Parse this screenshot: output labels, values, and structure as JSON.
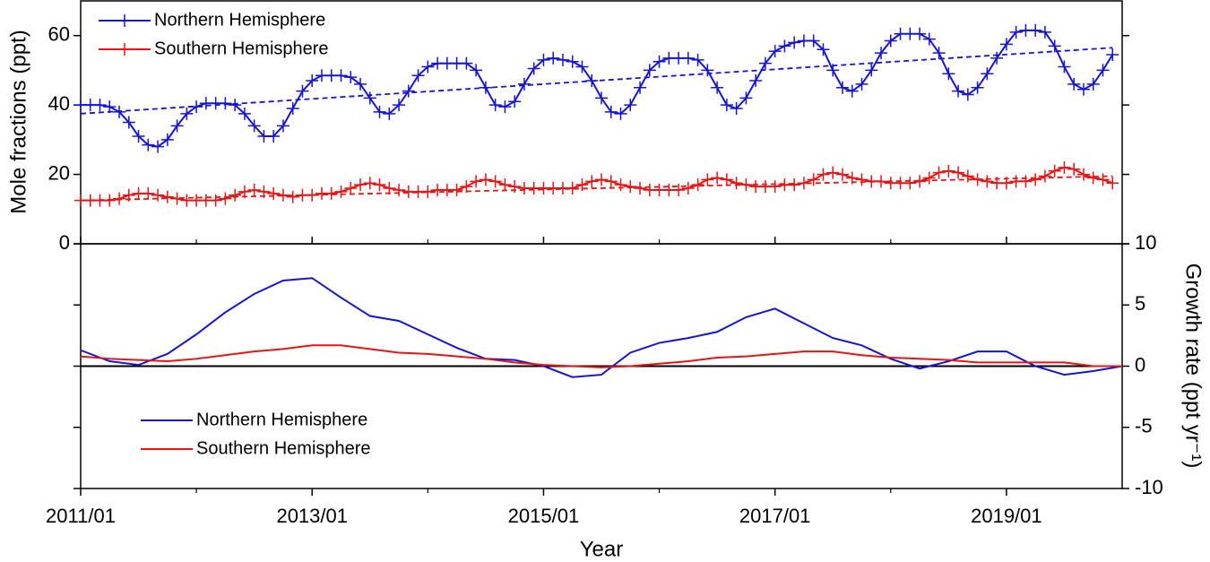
{
  "chart_data": [
    {
      "type": "line",
      "y_label": "Mole fractions (ppt)",
      "ylim": [
        0,
        70
      ],
      "yticks": [
        0,
        20,
        40,
        60
      ],
      "legend": "upper left",
      "marker": "+",
      "x": [
        "2011/01",
        "2011/02",
        "2011/03",
        "2011/04",
        "2011/05",
        "2011/06",
        "2011/07",
        "2011/08",
        "2011/09",
        "2011/10",
        "2011/11",
        "2011/12",
        "2012/01",
        "2012/02",
        "2012/03",
        "2012/04",
        "2012/05",
        "2012/06",
        "2012/07",
        "2012/08",
        "2012/09",
        "2012/10",
        "2012/11",
        "2012/12",
        "2013/01",
        "2013/02",
        "2013/03",
        "2013/04",
        "2013/05",
        "2013/06",
        "2013/07",
        "2013/08",
        "2013/09",
        "2013/10",
        "2013/11",
        "2013/12",
        "2014/01",
        "2014/02",
        "2014/03",
        "2014/04",
        "2014/05",
        "2014/06",
        "2014/07",
        "2014/08",
        "2014/09",
        "2014/10",
        "2014/11",
        "2014/12",
        "2015/01",
        "2015/02",
        "2015/03",
        "2015/04",
        "2015/05",
        "2015/06",
        "2015/07",
        "2015/08",
        "2015/09",
        "2015/10",
        "2015/11",
        "2015/12",
        "2016/01",
        "2016/02",
        "2016/03",
        "2016/04",
        "2016/05",
        "2016/06",
        "2016/07",
        "2016/08",
        "2016/09",
        "2016/10",
        "2016/11",
        "2016/12",
        "2017/01",
        "2017/02",
        "2017/03",
        "2017/04",
        "2017/05",
        "2017/06",
        "2017/07",
        "2017/08",
        "2017/09",
        "2017/10",
        "2017/11",
        "2017/12",
        "2018/01",
        "2018/02",
        "2018/03",
        "2018/04",
        "2018/05",
        "2018/06",
        "2018/07",
        "2018/08",
        "2018/09",
        "2018/10",
        "2018/11",
        "2018/12",
        "2019/01",
        "2019/02",
        "2019/03",
        "2019/04",
        "2019/05",
        "2019/06",
        "2019/07",
        "2019/08",
        "2019/09",
        "2019/10",
        "2019/11",
        "2019/12"
      ],
      "series": [
        {
          "name": "Northern Hemisphere",
          "color": "#1414d2",
          "values": [
            40,
            40,
            40,
            39.5,
            38,
            35,
            31,
            28.5,
            28,
            30,
            34,
            37.5,
            39.5,
            40.5,
            40.5,
            40.5,
            40,
            37.5,
            34,
            31,
            31,
            34,
            39,
            44,
            47,
            48.5,
            48.5,
            48.5,
            48,
            46,
            42,
            38,
            37.5,
            40,
            44,
            48.5,
            51,
            52,
            52,
            52,
            52,
            50,
            45,
            40,
            39.5,
            41,
            46,
            50.5,
            53,
            53.5,
            53,
            52.5,
            51,
            47,
            42,
            38,
            37.5,
            40,
            45,
            50,
            52.5,
            53.5,
            53.5,
            53.5,
            53,
            50,
            45,
            40,
            39,
            42,
            47,
            52,
            55.5,
            57,
            58,
            58.5,
            58.5,
            56,
            50,
            45,
            44,
            46,
            50,
            55,
            58.5,
            60.5,
            60.5,
            60.5,
            59,
            55,
            49,
            44,
            43,
            45,
            49,
            53.5,
            57.5,
            61,
            61.5,
            61.5,
            61,
            57,
            51,
            46,
            44.5,
            46,
            50,
            54.5
          ]
        },
        {
          "name": "Southern Hemisphere",
          "color": "#e61414",
          "values": [
            12.5,
            12.5,
            12.5,
            12.5,
            13,
            14,
            14.5,
            14.5,
            14,
            13.5,
            13,
            12.5,
            12.5,
            12.5,
            12.5,
            13,
            14,
            15,
            15.5,
            15,
            14.5,
            14,
            13.5,
            14,
            14,
            14.5,
            14.5,
            15,
            16,
            17,
            17.5,
            17,
            16,
            15.5,
            15,
            15,
            15,
            15.5,
            15.5,
            15.5,
            16.5,
            18,
            18.5,
            18,
            17,
            16.5,
            16,
            16,
            16,
            16,
            16,
            16,
            17,
            18,
            18.5,
            18,
            17,
            16.5,
            16,
            15.5,
            15.5,
            15.5,
            15.5,
            16,
            17,
            18.5,
            19,
            18.5,
            17.5,
            17,
            16.5,
            16.5,
            16.5,
            17,
            17,
            17.5,
            18.5,
            20,
            20.5,
            20,
            19,
            18.5,
            18,
            18,
            17.5,
            17.5,
            17.5,
            18,
            19,
            20.5,
            21,
            20.5,
            19.5,
            18.5,
            18,
            17.5,
            17.5,
            18,
            18,
            18.5,
            19.5,
            21,
            22,
            21.5,
            20,
            19,
            18.5,
            17.5
          ]
        }
      ],
      "trend": [
        {
          "color": "#1414d2",
          "x": [
            "2011/01",
            "2019/12"
          ],
          "values": [
            37.5,
            56.5
          ]
        },
        {
          "color": "#e61414",
          "x": [
            "2011/01",
            "2019/12"
          ],
          "values": [
            12.5,
            19.5
          ]
        }
      ]
    },
    {
      "type": "line",
      "x_label": "Year",
      "y2_label": "Growth rate (ppt yr⁻¹)",
      "y2lim": [
        -10,
        10
      ],
      "y2ticks": [
        10,
        5,
        0,
        -5,
        -10
      ],
      "legend": "lower left",
      "xlim": [
        "2011/01",
        "2020/01"
      ],
      "xticks": [
        "2011/01",
        "2013/01",
        "2015/01",
        "2017/01",
        "2019/01"
      ],
      "x": [
        "2011/01",
        "2011/04",
        "2011/07",
        "2011/10",
        "2012/01",
        "2012/04",
        "2012/07",
        "2012/10",
        "2013/01",
        "2013/04",
        "2013/07",
        "2013/10",
        "2014/01",
        "2014/04",
        "2014/07",
        "2014/10",
        "2015/01",
        "2015/04",
        "2015/07",
        "2015/10",
        "2016/01",
        "2016/04",
        "2016/07",
        "2016/10",
        "2017/01",
        "2017/04",
        "2017/07",
        "2017/10",
        "2018/01",
        "2018/04",
        "2018/07",
        "2018/10",
        "2019/01",
        "2019/04",
        "2019/07",
        "2019/10",
        "2020/01"
      ],
      "series": [
        {
          "name": "Northern Hemisphere",
          "color": "#1414d2",
          "axis": "y2",
          "values": [
            1.3,
            0.4,
            0.1,
            1.0,
            2.6,
            4.4,
            5.9,
            7.0,
            7.2,
            5.6,
            4.1,
            3.7,
            2.6,
            1.5,
            0.6,
            0.5,
            0,
            -0.9,
            -0.7,
            1.1,
            1.9,
            2.3,
            2.8,
            4.0,
            4.7,
            3.5,
            2.3,
            1.7,
            0.6,
            -0.2,
            0.4,
            1.2,
            1.2,
            0,
            -0.7,
            -0.4,
            0
          ]
        },
        {
          "name": "Southern Hemisphere",
          "color": "#e61414",
          "axis": "y2",
          "values": [
            0.8,
            0.6,
            0.5,
            0.4,
            0.6,
            0.9,
            1.2,
            1.4,
            1.7,
            1.7,
            1.4,
            1.1,
            1.0,
            0.8,
            0.6,
            0.3,
            0.1,
            0,
            -0.1,
            0,
            0.2,
            0.4,
            0.7,
            0.8,
            1.0,
            1.2,
            1.2,
            0.9,
            0.7,
            0.6,
            0.5,
            0.3,
            0.3,
            0.3,
            0.3,
            0,
            0
          ]
        }
      ]
    }
  ]
}
